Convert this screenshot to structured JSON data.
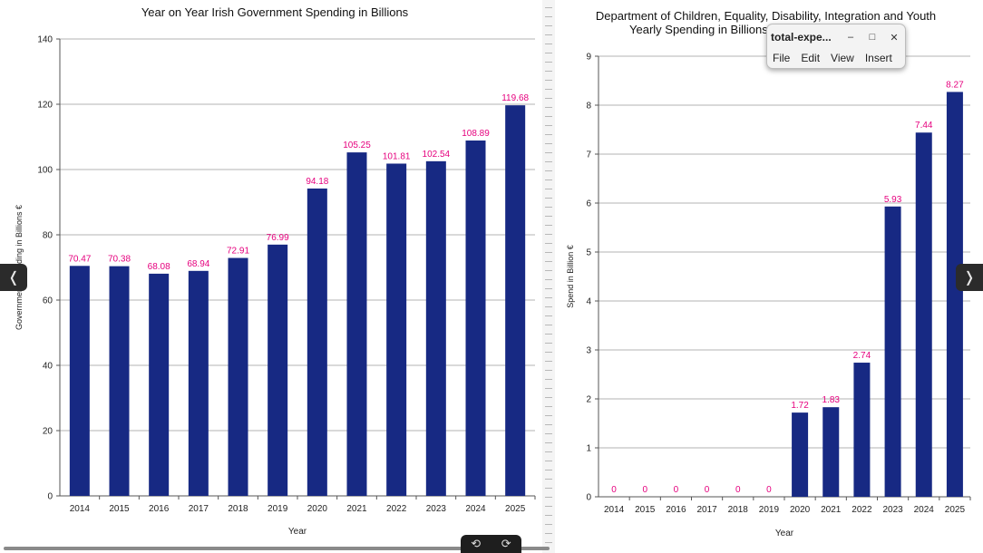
{
  "colors": {
    "bar": "#172983",
    "label": "#e6007e",
    "grid": "#b3b3b3",
    "axis": "#555555"
  },
  "chart_data": [
    {
      "type": "bar",
      "title": "Year on Year Irish Government Spending in Billions",
      "xlabel": "Year",
      "ylabel": "Government Spending in Billions €",
      "categories": [
        "2014",
        "2015",
        "2016",
        "2017",
        "2018",
        "2019",
        "2020",
        "2021",
        "2022",
        "2023",
        "2024",
        "2025"
      ],
      "values": [
        70.47,
        70.38,
        68.08,
        68.94,
        72.91,
        76.99,
        94.18,
        105.25,
        101.81,
        102.54,
        108.89,
        119.68
      ],
      "data_labels": [
        "70.47",
        "70.38",
        "68.08",
        "68.94",
        "72.91",
        "76.99",
        "94.18",
        "105.25",
        "101.81",
        "102.54",
        "108.89",
        "119.68"
      ],
      "ylim": [
        0,
        140
      ],
      "yticks": [
        0,
        20,
        40,
        60,
        80,
        100,
        120,
        140
      ],
      "grid": true
    },
    {
      "type": "bar",
      "title": "Department of Children, Equality, Disability, Integration and Youth",
      "title_line2": "Yearly Spending in Billions",
      "xlabel": "Year",
      "ylabel": "Spend in Billion €",
      "categories": [
        "2014",
        "2015",
        "2016",
        "2017",
        "2018",
        "2019",
        "2020",
        "2021",
        "2022",
        "2023",
        "2024",
        "2025"
      ],
      "values": [
        0,
        0,
        0,
        0,
        0,
        0,
        1.72,
        1.83,
        2.74,
        5.93,
        7.44,
        8.27
      ],
      "data_labels": [
        "0",
        "0",
        "0",
        "0",
        "0",
        "0",
        "1.72",
        "1.83",
        "2.74",
        "5.93",
        "7.44",
        "8.27"
      ],
      "ylim": [
        0,
        9
      ],
      "yticks": [
        0,
        1,
        2,
        3,
        4,
        5,
        6,
        7,
        8,
        9
      ],
      "grid": true
    }
  ],
  "window": {
    "title": "total-expe...",
    "minimize": "–",
    "maximize": "□",
    "close": "✕",
    "menu": [
      "File",
      "Edit",
      "View",
      "Insert"
    ]
  },
  "nav": {
    "prev": "❬",
    "next": "❭"
  },
  "rotate": {
    "ccw": "⟲",
    "cw": "⟳"
  }
}
